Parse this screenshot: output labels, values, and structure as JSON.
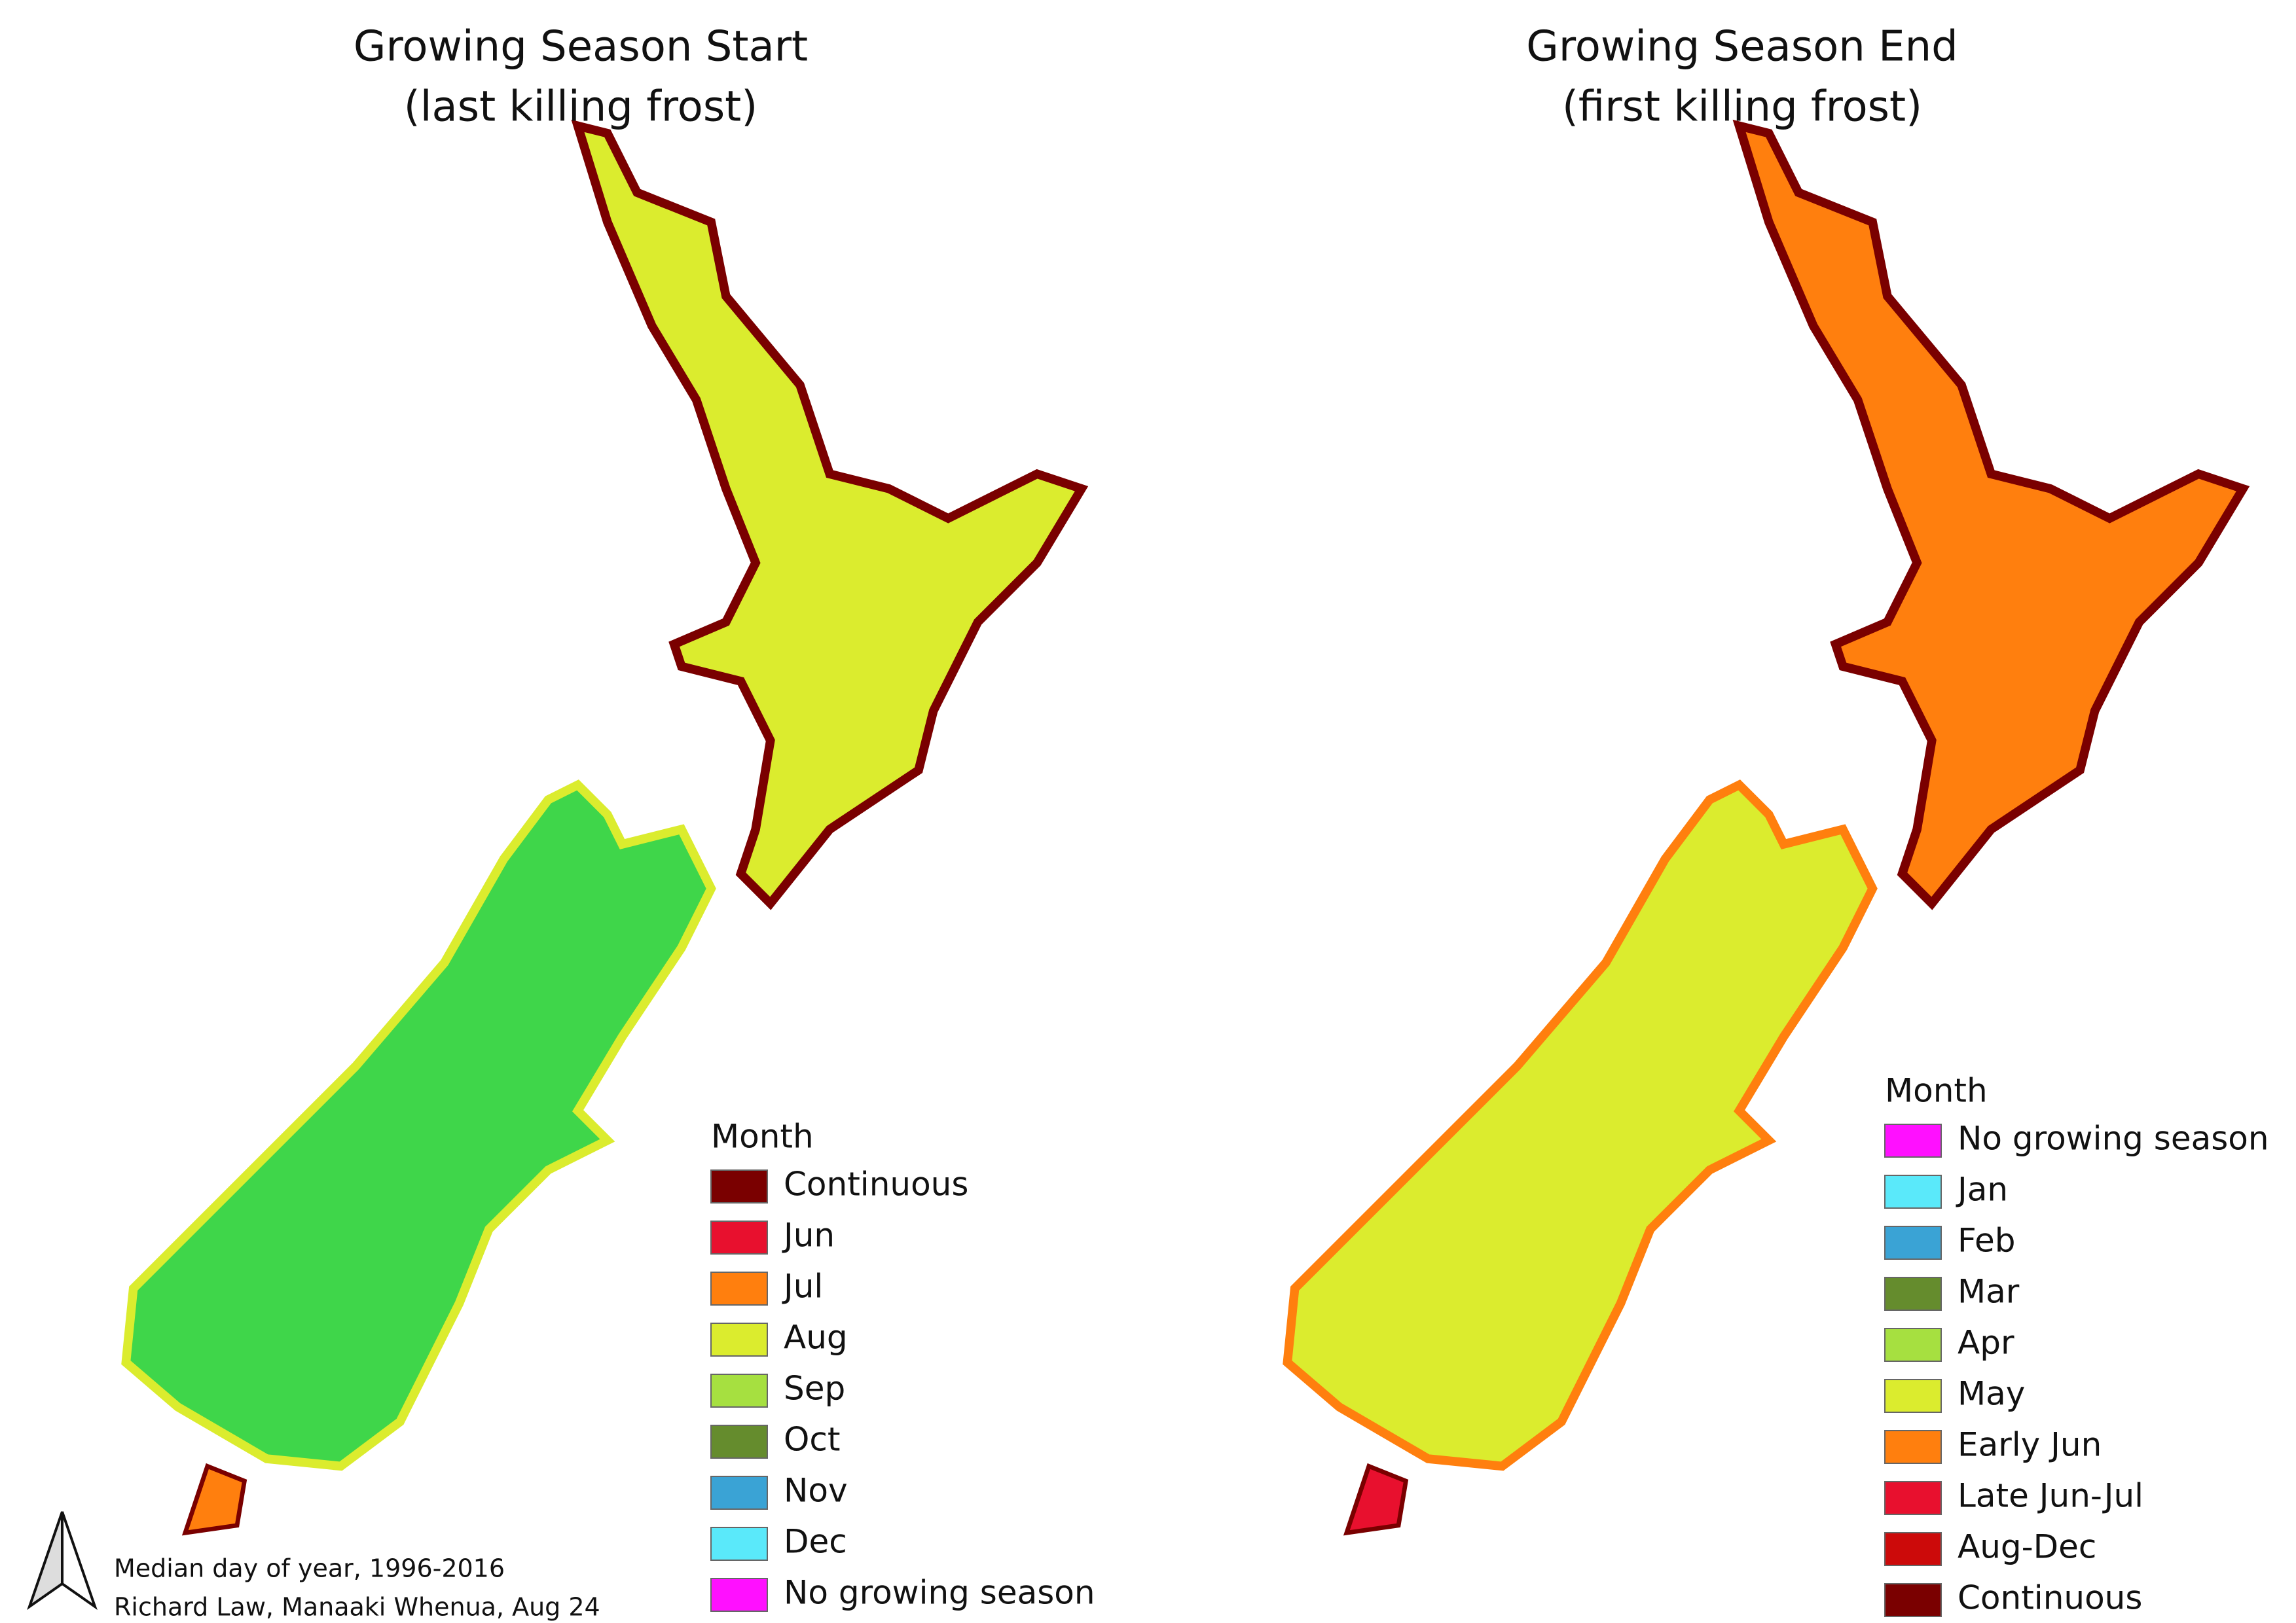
{
  "maps": [
    {
      "title": [
        "Growing Season Start",
        "(last killing frost)"
      ],
      "legend": {
        "title": "Month",
        "items": [
          {
            "label": "Continuous",
            "color": "#7a0000"
          },
          {
            "label": "Jun",
            "color": "#e8102e"
          },
          {
            "label": "Jul",
            "color": "#ff7f0e"
          },
          {
            "label": "Aug",
            "color": "#dbec2e"
          },
          {
            "label": "Sep",
            "color": "#a6e040"
          },
          {
            "label": "Oct",
            "color": "#658c2d"
          },
          {
            "label": "Nov",
            "color": "#3aa3d5"
          },
          {
            "label": "Dec",
            "color": "#5ae9fa"
          },
          {
            "label": "No growing season",
            "color": "#ff10ff"
          }
        ]
      }
    },
    {
      "title": [
        "Growing Season End",
        "(first killing frost)"
      ],
      "legend": {
        "title": "Month",
        "items": [
          {
            "label": "No growing season",
            "color": "#ff10ff"
          },
          {
            "label": "Jan",
            "color": "#5ae9fa"
          },
          {
            "label": "Feb",
            "color": "#3aa3d5"
          },
          {
            "label": "Mar",
            "color": "#658c2d"
          },
          {
            "label": "Apr",
            "color": "#a6e040"
          },
          {
            "label": "May",
            "color": "#dbec2e"
          },
          {
            "label": "Early Jun",
            "color": "#ff7f0e"
          },
          {
            "label": "Late Jun-Jul",
            "color": "#e8102e"
          },
          {
            "label": "Aug-Dec",
            "color": "#cc0a0a"
          },
          {
            "label": "Continuous",
            "color": "#7a0000"
          }
        ]
      }
    }
  ],
  "notes": [
    "Median day of year, 1996-2016",
    "Richard Law, Manaaki Whenua, Aug 24"
  ]
}
